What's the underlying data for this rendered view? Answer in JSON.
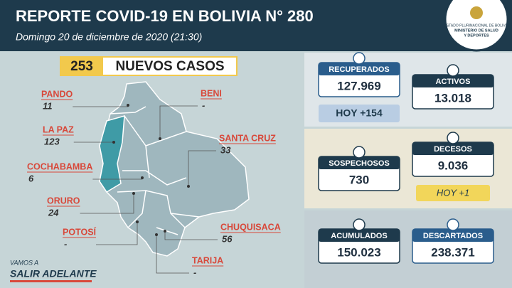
{
  "header": {
    "title": "REPORTE COVID-19 EN BOLIVIA N° 280",
    "date": "Domingo 20  de diciembre de 2020 (21:30)",
    "logo": [
      "ESTADO PLURINACIONAL DE BOLIVIA",
      "MINISTERIO DE SALUD",
      "Y DEPORTES"
    ]
  },
  "banner": {
    "count": "253",
    "label": "NUEVOS CASOS"
  },
  "departments": [
    {
      "name": "PANDO",
      "value": "11"
    },
    {
      "name": "BENI",
      "value": "-"
    },
    {
      "name": "LA PAZ",
      "value": "123"
    },
    {
      "name": "SANTA CRUZ",
      "value": "33"
    },
    {
      "name": "COCHABAMBA",
      "value": "6"
    },
    {
      "name": "ORURO",
      "value": "24"
    },
    {
      "name": "POTOSÍ",
      "value": "-"
    },
    {
      "name": "CHUQUISACA",
      "value": "56"
    },
    {
      "name": "TARIJA",
      "value": "-"
    }
  ],
  "stats": {
    "recuperados": {
      "label": "RECUPERADOS",
      "value": "127.969",
      "today": "HOY +154"
    },
    "activos": {
      "label": "ACTIVOS",
      "value": "13.018"
    },
    "sospechosos": {
      "label": "SOSPECHOSOS",
      "value": "730"
    },
    "decesos": {
      "label": "DECESOS",
      "value": "9.036",
      "today": "HOY +1"
    },
    "acumulados": {
      "label": "ACUMULADOS",
      "value": "150.023"
    },
    "descartados": {
      "label": "DESCARTADOS",
      "value": "238.371"
    }
  },
  "slogan": [
    "VAMOS A",
    "SALIR ADELANTE"
  ]
}
